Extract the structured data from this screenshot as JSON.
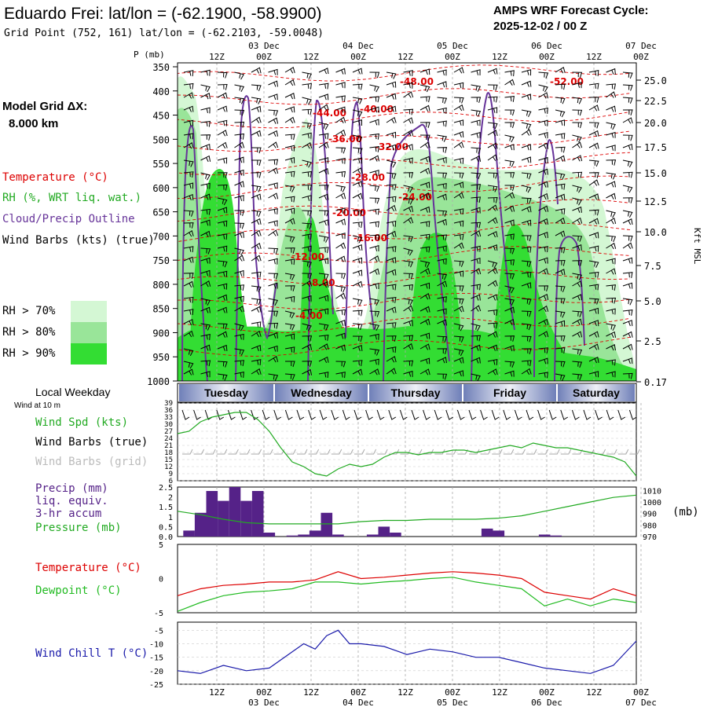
{
  "header": {
    "title": "Eduardo Frei:  lat/lon = (-62.1900, -58.9900)",
    "grid_point": "Grid Point (752, 161) lat/lon = (-62.2103, -59.0048)",
    "cycle_label": "AMPS WRF Forecast Cycle:",
    "cycle_value": "2025-12-02 / 00  Z"
  },
  "sidebar": {
    "model_grid_label": "Model Grid ΔX:",
    "model_grid_value": "8.000 km",
    "legend": [
      {
        "label": "Temperature (°C)",
        "color": "#dd0000"
      },
      {
        "label": "RH (%, WRT liq. wat.)",
        "color": "#22aa22"
      },
      {
        "label": "Cloud/Precip Outline",
        "color": "#663399"
      },
      {
        "label": "Wind Barbs (kts) (true)",
        "color": "#000000"
      }
    ],
    "rh_key": [
      {
        "label": "RH > 70%",
        "color": "#d4f7d4"
      },
      {
        "label": "RH > 80%",
        "color": "#99e599"
      },
      {
        "label": "RH > 90%",
        "color": "#33dd33"
      }
    ]
  },
  "time_axis": {
    "top_hours": [
      "12Z",
      "00Z",
      "12Z",
      "00Z",
      "12Z",
      "00Z",
      "12Z",
      "00Z",
      "12Z",
      "00Z"
    ],
    "top_dates": [
      "03 Dec",
      "04 Dec",
      "05 Dec",
      "06 Dec",
      "07 Dec"
    ],
    "bottom_hours": [
      "12Z",
      "00Z",
      "12Z",
      "00Z",
      "12Z",
      "00Z",
      "12Z",
      "00Z",
      "12Z",
      "00Z"
    ],
    "bottom_dates": [
      "03 Dec",
      "04 Dec",
      "05 Dec",
      "06 Dec",
      "07 Dec"
    ]
  },
  "weekday_bar": {
    "title": "Local Weekday",
    "days": [
      "Tuesday",
      "Wednesday",
      "Thursday",
      "Friday",
      "Saturday"
    ],
    "colors": {
      "edge": "#6f7fb8",
      "center": "#eef0f7"
    }
  },
  "panel_labels": {
    "wind_at": "Wind at 10 m",
    "wind_spd": "Wind Spd (kts)",
    "wind_barbs_true": "Wind Barbs (true)",
    "wind_barbs_grid": "Wind Barbs (grid)",
    "precip_1": "Precip (mm)",
    "precip_2": "liq. equiv.",
    "precip_3": "3-hr accum",
    "pressure": "Pressure (mb)",
    "pressure_unit": "(mb)",
    "temperature": "Temperature (°C)",
    "dewpoint": "Dewpoint (°C)",
    "wind_chill": "Wind Chill T (°C)"
  },
  "chart_data": [
    {
      "type": "heatmap",
      "name": "Time-height cross section",
      "ylabel": "P (mb)",
      "y2label": "Kft MSL",
      "pressure_ticks": [
        "350",
        "400",
        "450",
        "500",
        "550",
        "600",
        "650",
        "700",
        "750",
        "800",
        "850",
        "900",
        "950",
        "1000"
      ],
      "height_ticks": [
        "25.0",
        "22.5",
        "20.0",
        "17.5",
        "15.0",
        "12.5",
        "10.0",
        "7.5",
        "5.0",
        "2.5",
        "0.17"
      ],
      "ylim": [
        1000,
        330
      ],
      "temperature_contour_labels": [
        "-52.00",
        "-48.00",
        "-44.00",
        "-40.00",
        "-36.00",
        "-32.00",
        "-28.00",
        "-24.00",
        "-20.00",
        "-16.00",
        "-12.00",
        "-8.00",
        "-4.00"
      ],
      "rh_thresholds": [
        70,
        80,
        90
      ]
    },
    {
      "type": "line",
      "name": "Wind speed at 10 m",
      "ylabel": "Wind Spd (kts)",
      "yticks": [
        "39",
        "36",
        "33",
        "30",
        "27",
        "24",
        "21",
        "18",
        "15",
        "12",
        "9",
        "6"
      ],
      "ylim": [
        6,
        39
      ],
      "x_hours": [
        0,
        3,
        6,
        9,
        12,
        15,
        18,
        21,
        24,
        27,
        30,
        33,
        36,
        39,
        42,
        45,
        48,
        51,
        54,
        57,
        60,
        63,
        66,
        69,
        72,
        75,
        78,
        81,
        84,
        87,
        90,
        93,
        96,
        99,
        102,
        105,
        108,
        111,
        114,
        117,
        120
      ],
      "values": [
        26,
        27,
        31,
        33,
        34,
        35,
        35,
        32,
        27,
        20,
        14,
        12,
        9,
        8,
        11,
        13,
        12,
        13,
        16,
        18,
        18,
        17,
        18,
        18,
        19,
        19,
        18,
        19,
        20,
        21,
        20,
        22,
        21,
        20,
        20,
        19,
        18,
        17,
        16,
        14,
        8
      ]
    },
    {
      "type": "bar",
      "name": "Precipitation 3-hr accumulation",
      "ylabel": "Precip (mm)",
      "yticks": [
        "2.5",
        "2",
        "1.5",
        "1",
        "0.5",
        "0.0"
      ],
      "ylim": [
        0,
        2.5
      ],
      "x_hours": [
        3,
        6,
        9,
        12,
        15,
        18,
        21,
        24,
        30,
        33,
        36,
        39,
        42,
        51,
        54,
        57,
        81,
        84,
        96,
        99
      ],
      "values": [
        0.3,
        1.2,
        2.3,
        1.8,
        2.5,
        1.8,
        2.3,
        0.2,
        0.05,
        0.1,
        0.3,
        1.2,
        0.1,
        0.1,
        0.5,
        0.2,
        0.4,
        0.3,
        0.1,
        0.05
      ]
    },
    {
      "type": "line",
      "name": "Pressure",
      "ylabel": "Pressure (mb)",
      "yticks": [
        "1010",
        "1000",
        "990",
        "980",
        "970"
      ],
      "ylim": [
        970,
        1013
      ],
      "x_hours": [
        0,
        6,
        12,
        18,
        24,
        30,
        36,
        42,
        48,
        54,
        60,
        66,
        72,
        78,
        84,
        90,
        96,
        102,
        108,
        114,
        120
      ],
      "values": [
        992,
        989,
        985,
        982,
        981,
        981,
        981,
        981,
        983,
        984,
        984,
        985,
        985,
        985,
        986,
        988,
        992,
        996,
        1000,
        1004,
        1006
      ]
    },
    {
      "type": "line",
      "name": "Temperature and Dewpoint",
      "ylabel": "°C",
      "yticks": [
        "5",
        "0",
        "-5"
      ],
      "ylim": [
        -5,
        5
      ],
      "x_hours": [
        0,
        6,
        12,
        18,
        24,
        30,
        36,
        42,
        48,
        54,
        60,
        66,
        72,
        78,
        84,
        90,
        96,
        102,
        108,
        114,
        120
      ],
      "series": [
        {
          "name": "Temperature",
          "color": "#dd0000",
          "values": [
            -2.5,
            -1.5,
            -1.0,
            -0.8,
            -0.5,
            -0.5,
            -0.2,
            1.0,
            0.0,
            0.2,
            0.5,
            0.8,
            1.0,
            0.8,
            0.5,
            0.0,
            -2.0,
            -2.5,
            -3.0,
            -1.5,
            -2.5
          ]
        },
        {
          "name": "Dewpoint",
          "color": "#22bb22",
          "values": [
            -4.8,
            -3.5,
            -2.5,
            -2.0,
            -1.8,
            -1.5,
            -0.5,
            -0.5,
            -0.8,
            -0.5,
            -0.3,
            0.0,
            0.2,
            -0.5,
            -1.0,
            -1.5,
            -4.0,
            -3.0,
            -4.0,
            -3.0,
            -3.5
          ]
        }
      ]
    },
    {
      "type": "line",
      "name": "Wind Chill",
      "ylabel": "Wind Chill T (°C)",
      "yticks": [
        "-5",
        "-10",
        "-15",
        "-20",
        "-25"
      ],
      "ylim": [
        -25,
        -2
      ],
      "x_hours": [
        0,
        6,
        12,
        18,
        24,
        30,
        33,
        36,
        39,
        42,
        45,
        48,
        54,
        60,
        66,
        72,
        78,
        84,
        90,
        96,
        102,
        108,
        114,
        120
      ],
      "values": [
        -20,
        -21,
        -18,
        -20,
        -19,
        -13,
        -10,
        -12,
        -7,
        -5,
        -10,
        -10,
        -11,
        -14,
        -12,
        -13,
        -15,
        -15,
        -17,
        -19,
        -20,
        -21,
        -18,
        -9
      ]
    }
  ]
}
